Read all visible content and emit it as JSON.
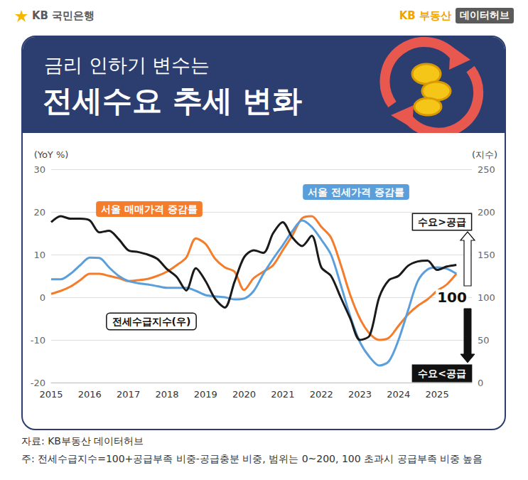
{
  "header": {
    "brand": "KB 국민은행",
    "brand_right": "KB 부동산",
    "brand_tag": "데이터허브",
    "title_line1": "금리 인하기 변수는",
    "title_line2": "전세수요 추세 변화"
  },
  "chart_data": {
    "type": "line",
    "x": [
      2015,
      2015.25,
      2015.5,
      2015.75,
      2016,
      2016.25,
      2016.5,
      2016.75,
      2017,
      2017.25,
      2017.5,
      2017.75,
      2018,
      2018.25,
      2018.5,
      2018.75,
      2019,
      2019.25,
      2019.5,
      2019.75,
      2020,
      2020.25,
      2020.5,
      2020.75,
      2021,
      2021.25,
      2021.5,
      2021.75,
      2022,
      2022.25,
      2022.5,
      2022.75,
      2023,
      2023.25,
      2023.5,
      2023.75,
      2024,
      2024.25,
      2024.5,
      2024.75,
      2025,
      2025.25,
      2025.5
    ],
    "xlim": [
      2015,
      2025.9
    ],
    "xticks": [
      2015,
      2016,
      2017,
      2018,
      2019,
      2020,
      2021,
      2022,
      2023,
      2024,
      2025
    ],
    "y_label": "(YoY %)",
    "ylim": [
      -20,
      30
    ],
    "yticks": [
      -20,
      -10,
      0,
      10,
      20,
      30
    ],
    "y2_label": "(지수)",
    "y2lim": [
      0,
      250
    ],
    "y2ticks": [
      0,
      50,
      100,
      150,
      200,
      250
    ],
    "grid": true,
    "series": [
      {
        "name": "서울 매매가격 증감률",
        "color": "#f47c2b",
        "values": [
          0.8,
          1.5,
          2.5,
          4,
          5.5,
          5.5,
          5,
          4.5,
          3.8,
          4,
          4.3,
          5,
          6,
          7.5,
          9.3,
          13.8,
          12.5,
          9,
          7,
          6,
          1.7,
          4.5,
          6,
          7.5,
          11,
          14.5,
          18.5,
          19,
          16.5,
          14,
          7.7,
          0.5,
          -5,
          -8.5,
          -10,
          -9.5,
          -6.7,
          -4,
          -2,
          -0.5,
          1.5,
          3,
          5.5
        ]
      },
      {
        "name": "서울 전세가격 증감률",
        "color": "#5a9fdc",
        "values": [
          4.2,
          4.2,
          5.5,
          7.5,
          9.3,
          9.2,
          7,
          5,
          3.8,
          3.3,
          3,
          2.6,
          2.2,
          2.2,
          2.2,
          1.5,
          0.5,
          0.2,
          0,
          -0.5,
          -0.3,
          1.5,
          5.5,
          9,
          12.2,
          15.5,
          18,
          16.5,
          13.5,
          10,
          3,
          -4.5,
          -10.5,
          -14,
          -16,
          -15,
          -10,
          -3,
          3.8,
          6.5,
          7,
          6.7,
          5.5
        ]
      },
      {
        "name": "전세수급지수(우)",
        "color": "#1a1a1a",
        "axis": "y2",
        "values": [
          188,
          195,
          192,
          192,
          190,
          176,
          178,
          168,
          155,
          153,
          150,
          145,
          133,
          124,
          108,
          134,
          119,
          98,
          88,
          118,
          147,
          155,
          152,
          175,
          188,
          170,
          160,
          172,
          135,
          125,
          100,
          75,
          50,
          55,
          100,
          120,
          125,
          137,
          142,
          143,
          132,
          136,
          138
        ]
      }
    ],
    "reference": {
      "value": 100,
      "axis": "y2",
      "above": "수요>공급",
      "below": "수요<공급"
    }
  },
  "source": "자료: KB부동산 데이터허브",
  "note": "주: 전세수급지수=100+공급부족 비중-공급충분 비중, 범위는 0~200, 100 초과시 공급부족 비중 높음"
}
